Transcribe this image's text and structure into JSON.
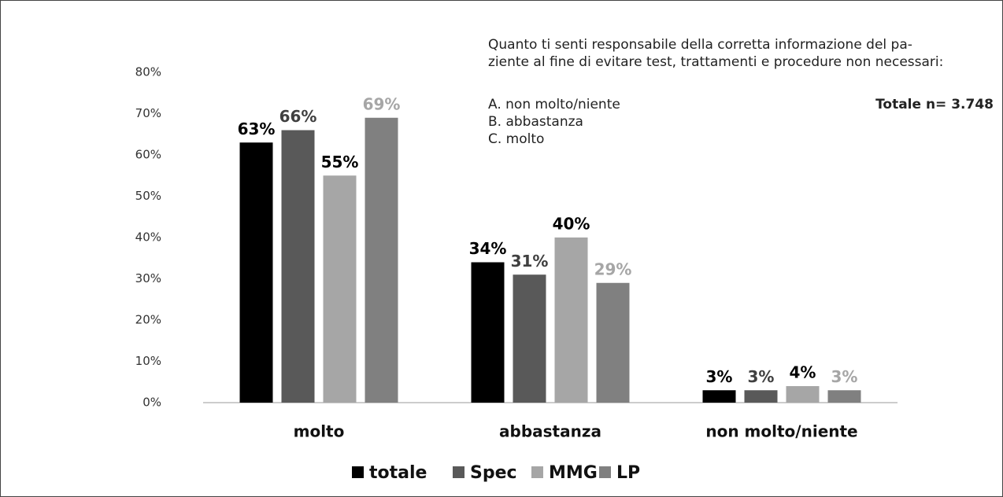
{
  "chart_data": {
    "type": "bar",
    "note_lines": [
      "Quanto ti senti responsabile della corretta informazione del pa-",
      "ziente al fine di evitare test, trattamenti e procedure non necessari:"
    ],
    "options": [
      "A. non molto/niente",
      "B. abbastanza",
      "C. molto"
    ],
    "total_label": "Totale n= 3.748",
    "categories": [
      "molto",
      "abbastanza",
      "non molto/niente"
    ],
    "series": [
      {
        "name": "totale",
        "color": "#000000",
        "label_color": "#000000",
        "values": [
          63,
          34,
          3
        ],
        "value_labels": [
          "63%",
          "34%",
          "3%"
        ]
      },
      {
        "name": "Spec",
        "color": "#595959",
        "label_color": "#404040",
        "values": [
          66,
          31,
          3
        ],
        "value_labels": [
          "66%",
          "31%",
          "3%"
        ]
      },
      {
        "name": "MMG",
        "color": "#a6a6a6",
        "label_color": "#000000",
        "values": [
          55,
          40,
          4
        ],
        "value_labels": [
          "55%",
          "40%",
          "4%"
        ]
      },
      {
        "name": "LP",
        "color": "#808080",
        "label_color": "#a6a6a6",
        "values": [
          69,
          29,
          3
        ],
        "value_labels": [
          "69%",
          "29%",
          "3%"
        ]
      }
    ],
    "ylim": [
      0,
      80
    ],
    "yticks": [
      {
        "value": 0,
        "label": "0%"
      },
      {
        "value": 10,
        "label": "10%"
      },
      {
        "value": 20,
        "label": "20%"
      },
      {
        "value": 30,
        "label": "30%"
      },
      {
        "value": 40,
        "label": "40%"
      },
      {
        "value": 50,
        "label": "50%"
      },
      {
        "value": 60,
        "label": "60%"
      },
      {
        "value": 70,
        "label": "70%"
      },
      {
        "value": 80,
        "label": "80%"
      }
    ],
    "grid": false,
    "legend": "bottom"
  }
}
